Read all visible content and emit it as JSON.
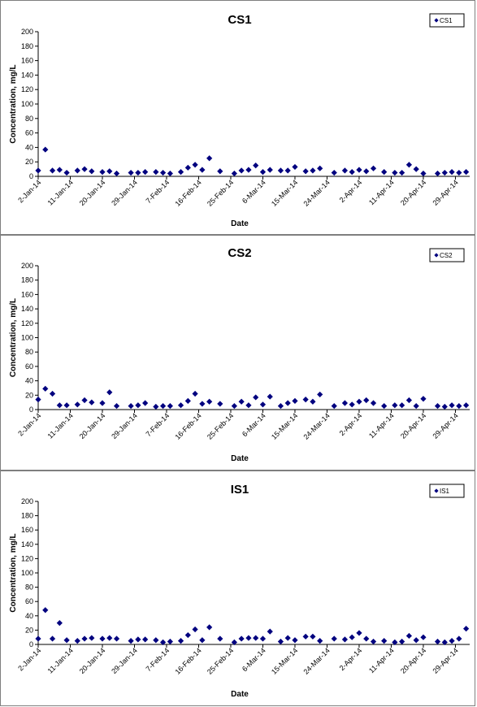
{
  "charts": [
    {
      "title": "CS1",
      "legend": "CS1"
    },
    {
      "title": "CS2",
      "legend": "CS2"
    },
    {
      "title": "IS1",
      "legend": "IS1"
    }
  ],
  "colors": {
    "marker": "#00007f",
    "axis": "#000000",
    "frame": "#7f7f7f"
  },
  "chart_data": [
    {
      "type": "scatter",
      "title": "CS1",
      "xlabel": "Date",
      "ylabel": "Concentration, mg/L",
      "ylim": [
        0,
        200
      ],
      "yticks": [
        0,
        20,
        40,
        60,
        80,
        100,
        120,
        140,
        160,
        180,
        200
      ],
      "xlim": [
        "2-Jan-14",
        "3-May-14"
      ],
      "xticks": [
        "2-Jan-14",
        "11-Jan-14",
        "20-Jan-14",
        "29-Jan-14",
        "7-Feb-14",
        "16-Feb-14",
        "25-Feb-14",
        "6-Mar-14",
        "15-Mar-14",
        "24-Mar-14",
        "2-Apr-14",
        "11-Apr-14",
        "20-Apr-14",
        "29-Apr-14"
      ],
      "legend": {
        "entries": [
          "CS1"
        ],
        "placement": "top-right"
      },
      "grid": false,
      "series": [
        {
          "name": "CS1",
          "x": [
            "2-Jan-14",
            "4-Jan-14",
            "6-Jan-14",
            "8-Jan-14",
            "10-Jan-14",
            "13-Jan-14",
            "15-Jan-14",
            "17-Jan-14",
            "20-Jan-14",
            "22-Jan-14",
            "24-Jan-14",
            "28-Jan-14",
            "30-Jan-14",
            "1-Feb-14",
            "4-Feb-14",
            "6-Feb-14",
            "8-Feb-14",
            "11-Feb-14",
            "13-Feb-14",
            "15-Feb-14",
            "17-Feb-14",
            "19-Feb-14",
            "22-Feb-14",
            "26-Feb-14",
            "28-Feb-14",
            "2-Mar-14",
            "4-Mar-14",
            "6-Mar-14",
            "8-Mar-14",
            "11-Mar-14",
            "13-Mar-14",
            "15-Mar-14",
            "18-Mar-14",
            "20-Mar-14",
            "22-Mar-14",
            "26-Mar-14",
            "29-Mar-14",
            "31-Mar-14",
            "2-Apr-14",
            "4-Apr-14",
            "6-Apr-14",
            "9-Apr-14",
            "12-Apr-14",
            "14-Apr-14",
            "16-Apr-14",
            "18-Apr-14",
            "20-Apr-14",
            "24-Apr-14",
            "26-Apr-14",
            "28-Apr-14",
            "30-Apr-14",
            "2-May-14"
          ],
          "y": [
            8,
            37,
            8,
            9,
            5,
            8,
            10,
            7,
            6,
            7,
            4,
            5,
            5,
            6,
            6,
            5,
            4,
            6,
            12,
            16,
            9,
            25,
            7,
            4,
            8,
            9,
            15,
            6,
            9,
            8,
            8,
            13,
            7,
            8,
            11,
            5,
            8,
            6,
            9,
            7,
            11,
            6,
            5,
            5,
            16,
            10,
            4,
            4,
            5,
            6,
            5,
            6
          ]
        }
      ]
    },
    {
      "type": "scatter",
      "title": "CS2",
      "xlabel": "Date",
      "ylabel": "Concentration, mg/L",
      "ylim": [
        0,
        200
      ],
      "yticks": [
        0,
        20,
        40,
        60,
        80,
        100,
        120,
        140,
        160,
        180,
        200
      ],
      "xlim": [
        "2-Jan-14",
        "3-May-14"
      ],
      "xticks": [
        "2-Jan-14",
        "11-Jan-14",
        "20-Jan-14",
        "29-Jan-14",
        "7-Feb-14",
        "16-Feb-14",
        "25-Feb-14",
        "6-Mar-14",
        "15-Mar-14",
        "24-Mar-14",
        "2-Apr-14",
        "11-Apr-14",
        "20-Apr-14",
        "29-Apr-14"
      ],
      "legend": {
        "entries": [
          "CS2"
        ],
        "placement": "top-right"
      },
      "grid": false,
      "series": [
        {
          "name": "CS2",
          "x": [
            "2-Jan-14",
            "4-Jan-14",
            "6-Jan-14",
            "8-Jan-14",
            "10-Jan-14",
            "13-Jan-14",
            "15-Jan-14",
            "17-Jan-14",
            "20-Jan-14",
            "22-Jan-14",
            "24-Jan-14",
            "28-Jan-14",
            "30-Jan-14",
            "1-Feb-14",
            "4-Feb-14",
            "6-Feb-14",
            "8-Feb-14",
            "11-Feb-14",
            "13-Feb-14",
            "15-Feb-14",
            "17-Feb-14",
            "19-Feb-14",
            "22-Feb-14",
            "26-Feb-14",
            "28-Feb-14",
            "2-Mar-14",
            "4-Mar-14",
            "6-Mar-14",
            "8-Mar-14",
            "11-Mar-14",
            "13-Mar-14",
            "15-Mar-14",
            "18-Mar-14",
            "20-Mar-14",
            "22-Mar-14",
            "26-Mar-14",
            "29-Mar-14",
            "31-Mar-14",
            "2-Apr-14",
            "4-Apr-14",
            "6-Apr-14",
            "9-Apr-14",
            "12-Apr-14",
            "14-Apr-14",
            "16-Apr-14",
            "18-Apr-14",
            "20-Apr-14",
            "24-Apr-14",
            "26-Apr-14",
            "28-Apr-14",
            "30-Apr-14",
            "2-May-14"
          ],
          "y": [
            14,
            29,
            22,
            6,
            6,
            7,
            13,
            10,
            9,
            24,
            5,
            5,
            6,
            9,
            4,
            5,
            5,
            6,
            12,
            22,
            8,
            11,
            8,
            5,
            11,
            6,
            17,
            7,
            18,
            5,
            9,
            12,
            14,
            11,
            21,
            5,
            9,
            7,
            11,
            13,
            9,
            5,
            6,
            6,
            13,
            5,
            15,
            5,
            4,
            6,
            5,
            6
          ]
        }
      ]
    },
    {
      "type": "scatter",
      "title": "IS1",
      "xlabel": "Date",
      "ylabel": "Concentration, mg/L",
      "ylim": [
        0,
        200
      ],
      "yticks": [
        0,
        20,
        40,
        60,
        80,
        100,
        120,
        140,
        160,
        180,
        200
      ],
      "xlim": [
        "2-Jan-14",
        "3-May-14"
      ],
      "xticks": [
        "2-Jan-14",
        "11-Jan-14",
        "20-Jan-14",
        "29-Jan-14",
        "7-Feb-14",
        "16-Feb-14",
        "25-Feb-14",
        "6-Mar-14",
        "15-Mar-14",
        "24-Mar-14",
        "2-Apr-14",
        "11-Apr-14",
        "20-Apr-14",
        "29-Apr-14"
      ],
      "legend": {
        "entries": [
          "IS1"
        ],
        "placement": "top-right"
      },
      "grid": false,
      "series": [
        {
          "name": "IS1",
          "x": [
            "2-Jan-14",
            "4-Jan-14",
            "6-Jan-14",
            "8-Jan-14",
            "10-Jan-14",
            "13-Jan-14",
            "15-Jan-14",
            "17-Jan-14",
            "20-Jan-14",
            "22-Jan-14",
            "24-Jan-14",
            "28-Jan-14",
            "30-Jan-14",
            "1-Feb-14",
            "4-Feb-14",
            "6-Feb-14",
            "8-Feb-14",
            "11-Feb-14",
            "13-Feb-14",
            "15-Feb-14",
            "17-Feb-14",
            "19-Feb-14",
            "22-Feb-14",
            "26-Feb-14",
            "28-Feb-14",
            "2-Mar-14",
            "4-Mar-14",
            "6-Mar-14",
            "8-Mar-14",
            "11-Mar-14",
            "13-Mar-14",
            "15-Mar-14",
            "18-Mar-14",
            "20-Mar-14",
            "22-Mar-14",
            "26-Mar-14",
            "29-Mar-14",
            "31-Mar-14",
            "2-Apr-14",
            "4-Apr-14",
            "6-Apr-14",
            "9-Apr-14",
            "12-Apr-14",
            "14-Apr-14",
            "16-Apr-14",
            "18-Apr-14",
            "20-Apr-14",
            "24-Apr-14",
            "26-Apr-14",
            "28-Apr-14",
            "30-Apr-14",
            "2-May-14"
          ],
          "y": [
            8,
            48,
            8,
            30,
            6,
            5,
            8,
            9,
            8,
            9,
            8,
            5,
            7,
            7,
            6,
            3,
            4,
            5,
            13,
            21,
            6,
            24,
            8,
            3,
            8,
            9,
            9,
            8,
            18,
            4,
            9,
            6,
            11,
            11,
            5,
            8,
            7,
            10,
            16,
            8,
            4,
            5,
            3,
            4,
            12,
            6,
            10,
            4,
            3,
            5,
            8,
            22
          ]
        }
      ]
    }
  ]
}
